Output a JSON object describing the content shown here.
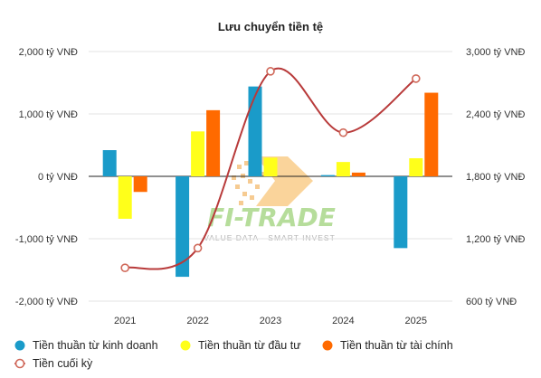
{
  "chart_data": {
    "type": "bar",
    "title": "Lưu chuyển tiền tệ",
    "categories": [
      "2021",
      "2022",
      "2023",
      "2024",
      "2025"
    ],
    "series": [
      {
        "name": "Tiền thuần từ kinh doanh",
        "color": "#1a9bc9",
        "axis": "left",
        "values": [
          420,
          -1610,
          1440,
          20,
          -1150
        ]
      },
      {
        "name": "Tiền thuần từ đầu tư",
        "color": "#ffff1a",
        "axis": "left",
        "values": [
          -680,
          720,
          300,
          230,
          290
        ]
      },
      {
        "name": "Tiền thuần từ tài chính",
        "color": "#ff6a00",
        "axis": "left",
        "values": [
          -250,
          1060,
          0,
          60,
          1340
        ]
      },
      {
        "name": "Tiền cuối kỳ",
        "color": "#b83a3a",
        "type": "line",
        "axis": "right",
        "values": [
          920,
          1110,
          2810,
          2220,
          2740
        ]
      }
    ],
    "y_left": {
      "ticks": [
        2000,
        1000,
        0,
        -1000,
        -2000
      ],
      "tick_labels": [
        "2,000 tỷ VNĐ",
        "1,000 tỷ VNĐ",
        "0 tỷ VNĐ",
        "-1,000 tỷ VNĐ",
        "-2,000 tỷ VNĐ"
      ],
      "range": [
        -2000,
        2000
      ]
    },
    "y_right": {
      "ticks": [
        3000,
        2400,
        1800,
        1200,
        600
      ],
      "tick_labels": [
        "3,000 tỷ VNĐ",
        "2,400 tỷ VNĐ",
        "1,800 tỷ VNĐ",
        "1,200 tỷ VNĐ",
        "600 tỷ VNĐ"
      ],
      "range": [
        600,
        3000
      ]
    },
    "grid": true,
    "legend_position": "bottom"
  },
  "watermark": {
    "name": "FI-TRADE",
    "tagline": "VALUE DATA - SMART INVEST"
  }
}
